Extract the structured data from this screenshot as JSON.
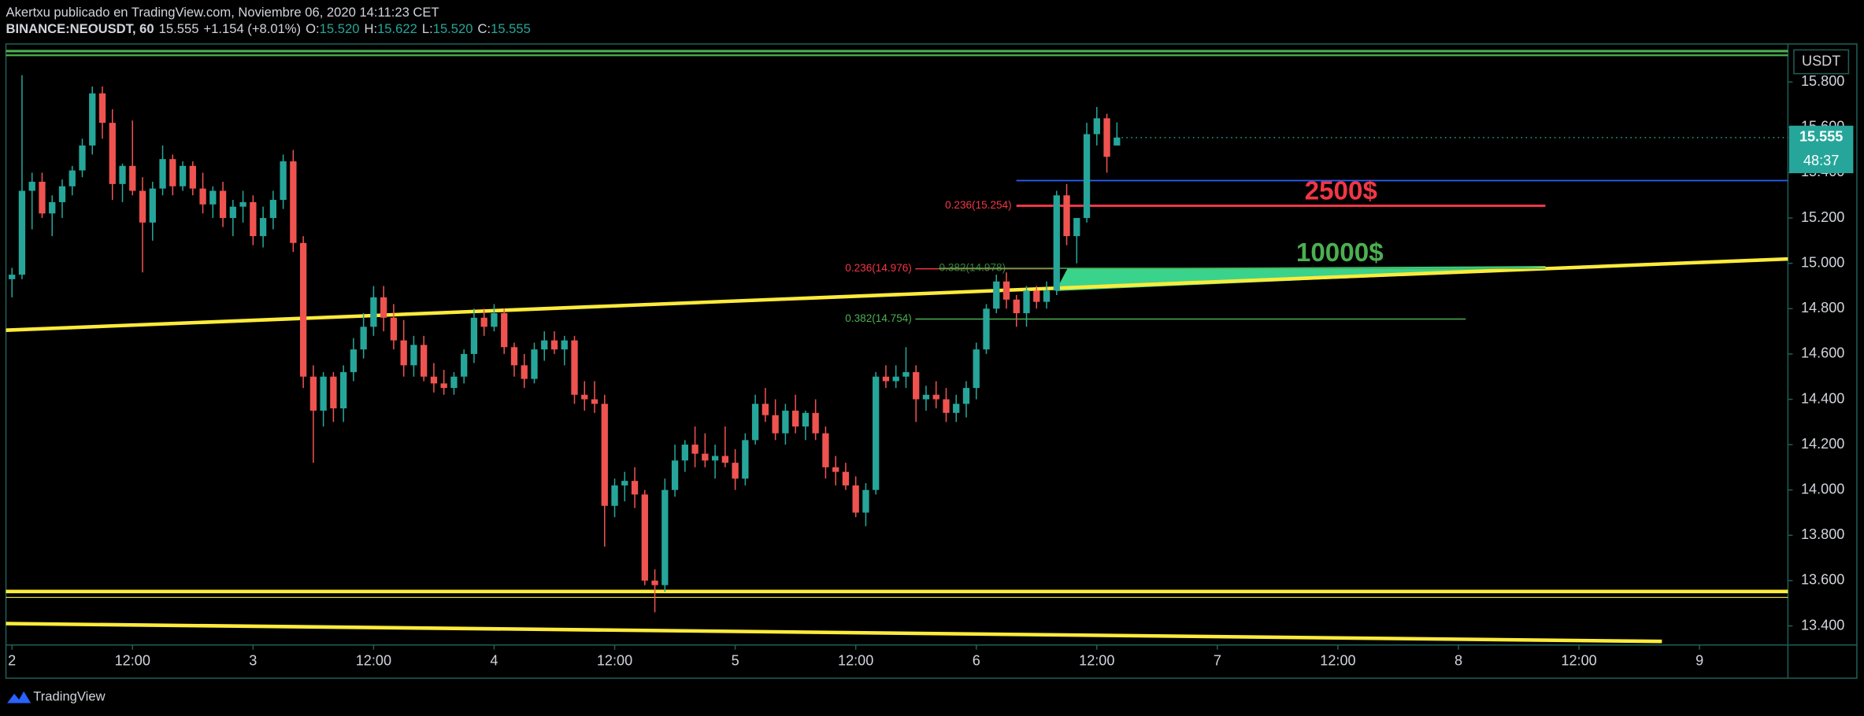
{
  "header": {
    "publisher": "Akertxu publicado en TradingView.com, Noviembre 06, 2020 14:11:23 CET",
    "symbol": "BINANCE:NEOUSDT, 60",
    "price": "15.555",
    "change": "+1.154 (+8.01%)",
    "o_label": "O:",
    "o": "15.520",
    "h_label": "H:",
    "h": "15.622",
    "l_label": "L:",
    "l": "15.520",
    "c_label": "C:",
    "c": "15.555"
  },
  "chart_data": {
    "type": "candlestick",
    "x": [
      0,
      1,
      2,
      3,
      4,
      5,
      6,
      7,
      8,
      9,
      10,
      11,
      12,
      13,
      14,
      15,
      16,
      17,
      18,
      19,
      20,
      21,
      22,
      23,
      24,
      25,
      26,
      27,
      28,
      29,
      30,
      31,
      32,
      33,
      34,
      35,
      36,
      37,
      38,
      39,
      40,
      41,
      42,
      43,
      44,
      45,
      46,
      47,
      48,
      49,
      50,
      51,
      52,
      53,
      54,
      55,
      56,
      57,
      58,
      59,
      60,
      61,
      62,
      63,
      64,
      65,
      66,
      67,
      68,
      69,
      70,
      71,
      72,
      73,
      74,
      75,
      76,
      77,
      78,
      79,
      80,
      81,
      82,
      83,
      84,
      85,
      86,
      87,
      88,
      89,
      90,
      91,
      92,
      93,
      94,
      95,
      96,
      97,
      98,
      99,
      100,
      101,
      102,
      103,
      104,
      105,
      106,
      107,
      108,
      109,
      110
    ],
    "ohlc": [
      [
        14.93,
        14.98,
        14.85,
        14.95
      ],
      [
        14.95,
        15.83,
        14.93,
        15.32
      ],
      [
        15.32,
        15.4,
        15.15,
        15.36
      ],
      [
        15.36,
        15.4,
        15.2,
        15.22
      ],
      [
        15.22,
        15.3,
        15.12,
        15.27
      ],
      [
        15.27,
        15.37,
        15.2,
        15.34
      ],
      [
        15.34,
        15.43,
        15.3,
        15.41
      ],
      [
        15.41,
        15.55,
        15.38,
        15.52
      ],
      [
        15.52,
        15.78,
        15.48,
        15.75
      ],
      [
        15.75,
        15.78,
        15.55,
        15.62
      ],
      [
        15.62,
        15.68,
        15.28,
        15.35
      ],
      [
        15.35,
        15.44,
        15.27,
        15.43
      ],
      [
        15.43,
        15.63,
        15.3,
        15.32
      ],
      [
        15.32,
        15.38,
        14.96,
        15.18
      ],
      [
        15.18,
        15.36,
        15.1,
        15.33
      ],
      [
        15.33,
        15.52,
        15.3,
        15.46
      ],
      [
        15.46,
        15.48,
        15.3,
        15.34
      ],
      [
        15.34,
        15.45,
        15.32,
        15.43
      ],
      [
        15.43,
        15.45,
        15.3,
        15.33
      ],
      [
        15.33,
        15.4,
        15.22,
        15.26
      ],
      [
        15.26,
        15.34,
        15.2,
        15.32
      ],
      [
        15.32,
        15.36,
        15.16,
        15.2
      ],
      [
        15.2,
        15.28,
        15.12,
        15.25
      ],
      [
        15.25,
        15.32,
        15.18,
        15.27
      ],
      [
        15.27,
        15.3,
        15.08,
        15.12
      ],
      [
        15.12,
        15.25,
        15.07,
        15.2
      ],
      [
        15.2,
        15.32,
        15.15,
        15.28
      ],
      [
        15.28,
        15.48,
        15.24,
        15.45
      ],
      [
        15.45,
        15.5,
        15.05,
        15.09
      ],
      [
        15.09,
        15.12,
        14.45,
        14.5
      ],
      [
        14.5,
        14.55,
        14.12,
        14.35
      ],
      [
        14.35,
        14.52,
        14.28,
        14.5
      ],
      [
        14.5,
        14.52,
        14.3,
        14.36
      ],
      [
        14.36,
        14.55,
        14.3,
        14.52
      ],
      [
        14.52,
        14.67,
        14.48,
        14.62
      ],
      [
        14.62,
        14.78,
        14.58,
        14.72
      ],
      [
        14.72,
        14.9,
        14.68,
        14.85
      ],
      [
        14.85,
        14.9,
        14.7,
        14.76
      ],
      [
        14.76,
        14.82,
        14.62,
        14.66
      ],
      [
        14.66,
        14.75,
        14.5,
        14.55
      ],
      [
        14.55,
        14.68,
        14.5,
        14.64
      ],
      [
        14.64,
        14.68,
        14.48,
        14.5
      ],
      [
        14.5,
        14.56,
        14.43,
        14.47
      ],
      [
        14.47,
        14.53,
        14.42,
        14.45
      ],
      [
        14.45,
        14.52,
        14.42,
        14.5
      ],
      [
        14.5,
        14.62,
        14.47,
        14.6
      ],
      [
        14.6,
        14.8,
        14.56,
        14.76
      ],
      [
        14.76,
        14.8,
        14.68,
        14.72
      ],
      [
        14.72,
        14.82,
        14.7,
        14.78
      ],
      [
        14.78,
        14.8,
        14.6,
        14.63
      ],
      [
        14.63,
        14.65,
        14.5,
        14.55
      ],
      [
        14.55,
        14.6,
        14.45,
        14.49
      ],
      [
        14.49,
        14.65,
        14.47,
        14.62
      ],
      [
        14.62,
        14.7,
        14.57,
        14.66
      ],
      [
        14.66,
        14.7,
        14.6,
        14.62
      ],
      [
        14.62,
        14.68,
        14.55,
        14.66
      ],
      [
        14.66,
        14.68,
        14.38,
        14.42
      ],
      [
        14.42,
        14.48,
        14.35,
        14.4
      ],
      [
        14.4,
        14.48,
        14.34,
        14.38
      ],
      [
        14.38,
        14.42,
        13.75,
        13.93
      ],
      [
        13.93,
        14.05,
        13.88,
        14.02
      ],
      [
        14.02,
        14.08,
        13.95,
        14.04
      ],
      [
        14.04,
        14.1,
        13.92,
        13.98
      ],
      [
        13.98,
        14.0,
        13.58,
        13.6
      ],
      [
        13.6,
        13.65,
        13.46,
        13.58
      ],
      [
        13.58,
        14.05,
        13.55,
        14.0
      ],
      [
        14.0,
        14.2,
        13.97,
        14.13
      ],
      [
        14.13,
        14.22,
        14.08,
        14.2
      ],
      [
        14.2,
        14.28,
        14.1,
        14.16
      ],
      [
        14.16,
        14.25,
        14.1,
        14.13
      ],
      [
        14.13,
        14.2,
        14.05,
        14.15
      ],
      [
        14.15,
        14.28,
        14.1,
        14.12
      ],
      [
        14.12,
        14.18,
        14.0,
        14.05
      ],
      [
        14.05,
        14.25,
        14.02,
        14.22
      ],
      [
        14.22,
        14.42,
        14.2,
        14.38
      ],
      [
        14.38,
        14.45,
        14.3,
        14.33
      ],
      [
        14.33,
        14.4,
        14.22,
        14.25
      ],
      [
        14.25,
        14.38,
        14.2,
        14.35
      ],
      [
        14.35,
        14.42,
        14.25,
        14.28
      ],
      [
        14.28,
        14.35,
        14.22,
        14.34
      ],
      [
        14.34,
        14.4,
        14.22,
        14.25
      ],
      [
        14.25,
        14.28,
        14.05,
        14.1
      ],
      [
        14.1,
        14.15,
        14.02,
        14.08
      ],
      [
        14.08,
        14.12,
        14.0,
        14.02
      ],
      [
        14.02,
        14.06,
        13.88,
        13.9
      ],
      [
        13.9,
        14.03,
        13.84,
        14.0
      ],
      [
        14.0,
        14.52,
        13.98,
        14.5
      ],
      [
        14.5,
        14.55,
        14.45,
        14.48
      ],
      [
        14.48,
        14.55,
        14.45,
        14.5
      ],
      [
        14.5,
        14.63,
        14.45,
        14.52
      ],
      [
        14.52,
        14.55,
        14.3,
        14.4
      ],
      [
        14.4,
        14.46,
        14.35,
        14.42
      ],
      [
        14.42,
        14.48,
        14.36,
        14.4
      ],
      [
        14.4,
        14.45,
        14.3,
        14.34
      ],
      [
        14.34,
        14.42,
        14.3,
        14.38
      ],
      [
        14.38,
        14.48,
        14.32,
        14.45
      ],
      [
        14.45,
        14.65,
        14.4,
        14.62
      ],
      [
        14.62,
        14.82,
        14.6,
        14.8
      ],
      [
        14.8,
        14.95,
        14.78,
        14.92
      ],
      [
        14.92,
        14.96,
        14.8,
        14.84
      ],
      [
        14.84,
        14.86,
        14.72,
        14.78
      ],
      [
        14.78,
        14.9,
        14.72,
        14.88
      ],
      [
        14.88,
        14.9,
        14.8,
        14.83
      ],
      [
        14.83,
        14.92,
        14.8,
        14.88
      ],
      [
        14.88,
        15.32,
        14.86,
        15.3
      ],
      [
        15.3,
        15.35,
        15.08,
        15.12
      ],
      [
        15.12,
        15.2,
        15.0,
        15.2
      ],
      [
        15.2,
        15.62,
        15.18,
        15.57
      ],
      [
        15.57,
        15.69,
        15.52,
        15.64
      ],
      [
        15.64,
        15.66,
        15.4,
        15.47
      ],
      [
        15.52,
        15.622,
        15.52,
        15.555
      ]
    ],
    "up_color": "#26a69a",
    "down_color": "#ef5350",
    "xlim": [
      -0.6,
      176.8
    ],
    "xticks": [
      {
        "value": 0,
        "label": "2"
      },
      {
        "value": 12,
        "label": "12:00"
      },
      {
        "value": 24,
        "label": "3"
      },
      {
        "value": 36,
        "label": "12:00"
      },
      {
        "value": 48,
        "label": "4"
      },
      {
        "value": 60,
        "label": "12:00"
      },
      {
        "value": 72,
        "label": "5"
      },
      {
        "value": 84,
        "label": "12:00"
      },
      {
        "value": 96,
        "label": "6"
      },
      {
        "value": 108,
        "label": "12:00"
      },
      {
        "value": 120,
        "label": "7"
      },
      {
        "value": 132,
        "label": "12:00"
      },
      {
        "value": 144,
        "label": "8"
      },
      {
        "value": 156,
        "label": "12:00"
      },
      {
        "value": 168,
        "label": "9"
      }
    ],
    "ylim": [
      13.316,
      15.968
    ],
    "yticks": [
      {
        "value": 13.4,
        "label": "13.400"
      },
      {
        "value": 13.6,
        "label": "13.600"
      },
      {
        "value": 13.8,
        "label": "13.800"
      },
      {
        "value": 14.0,
        "label": "14.000"
      },
      {
        "value": 14.2,
        "label": "14.200"
      },
      {
        "value": 14.4,
        "label": "14.400"
      },
      {
        "value": 14.6,
        "label": "14.600"
      },
      {
        "value": 14.8,
        "label": "14.800"
      },
      {
        "value": 15.0,
        "label": "15.000"
      },
      {
        "value": 15.2,
        "label": "15.200"
      },
      {
        "value": 15.4,
        "label": "15.400"
      },
      {
        "value": 15.6,
        "label": "15.600"
      },
      {
        "value": 15.8,
        "label": "15.800"
      }
    ],
    "axis_unit": "USDT",
    "last_price": {
      "value": 15.555,
      "label": "15.555",
      "color": "#26a69a"
    },
    "countdown": "48:37",
    "levels": [
      {
        "label": "0.236(15.254)",
        "value": 15.254,
        "color": "#f23645"
      },
      {
        "label": "0.236(14.976)",
        "value": 14.976,
        "color": "#f23645"
      },
      {
        "label": "0.382(14.978)",
        "value": 14.978,
        "color": "#4caf50"
      },
      {
        "label": "0.382(14.754)",
        "value": 14.754,
        "color": "#4caf50"
      }
    ],
    "annotations": [
      {
        "text": "2500$",
        "color": "#f23645"
      },
      {
        "text": "10000$",
        "color": "#4caf50"
      }
    ]
  },
  "footer": {
    "brand": "TradingView"
  }
}
